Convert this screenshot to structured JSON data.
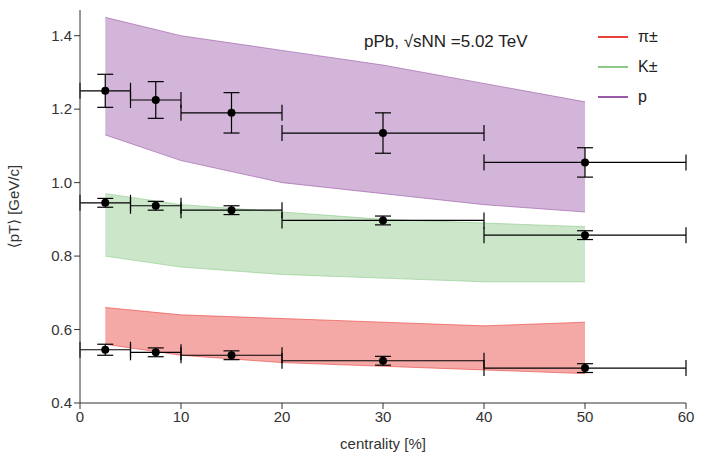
{
  "chart_data": {
    "type": "scatter",
    "title": "pPb, √sNN =5.02 TeV",
    "x_label": "centrality [%]",
    "y_label": "⟨pT⟩ [GeV/c]",
    "xlim": [
      0,
      60
    ],
    "xticks": [
      0,
      10,
      20,
      30,
      40,
      50,
      60
    ],
    "ylim": [
      0.4,
      1.47
    ],
    "yticks": [
      0.4,
      0.6,
      0.8,
      {
        "value": 1.0,
        "label": "1.0"
      },
      1.2,
      1.4
    ],
    "grid": false,
    "legend": "top-right",
    "marker": "circle",
    "series": [
      {
        "name": "π±",
        "color": "#e8413c",
        "x": [
          2.5,
          7.5,
          15,
          30,
          50
        ],
        "values": [
          0.545,
          0.538,
          0.53,
          0.515,
          0.495
        ],
        "xerr": [
          2.5,
          2.5,
          5,
          10,
          10
        ],
        "yerr": [
          0.015,
          0.012,
          0.012,
          0.012,
          0.012
        ],
        "band": {
          "x": [
            2.5,
            10,
            20,
            30,
            40,
            50
          ],
          "lower": [
            0.56,
            0.53,
            0.51,
            0.5,
            0.49,
            0.48
          ],
          "upper": [
            0.66,
            0.64,
            0.63,
            0.62,
            0.61,
            0.62
          ]
        }
      },
      {
        "name": "K±",
        "color": "#8cc887",
        "x": [
          2.5,
          7.5,
          15,
          30,
          50
        ],
        "values": [
          0.945,
          0.937,
          0.925,
          0.897,
          0.857
        ],
        "xerr": [
          2.5,
          2.5,
          5,
          10,
          10
        ],
        "yerr": [
          0.012,
          0.012,
          0.012,
          0.012,
          0.012
        ],
        "band": {
          "x": [
            2.5,
            10,
            20,
            30,
            40,
            50
          ],
          "lower": [
            0.8,
            0.77,
            0.75,
            0.74,
            0.73,
            0.73
          ],
          "upper": [
            0.97,
            0.94,
            0.92,
            0.9,
            0.89,
            0.88
          ]
        }
      },
      {
        "name": "p",
        "color": "#9b5aa8",
        "x": [
          2.5,
          7.5,
          15,
          30,
          50
        ],
        "values": [
          1.25,
          1.225,
          1.19,
          1.135,
          1.055
        ],
        "xerr": [
          2.5,
          2.5,
          5,
          10,
          10
        ],
        "yerr": [
          0.045,
          0.05,
          0.055,
          0.055,
          0.04
        ],
        "band": {
          "x": [
            2.5,
            10,
            20,
            30,
            40,
            50
          ],
          "lower": [
            1.13,
            1.06,
            1.0,
            0.97,
            0.94,
            0.92
          ],
          "upper": [
            1.45,
            1.4,
            1.36,
            1.32,
            1.27,
            1.22
          ]
        }
      }
    ]
  }
}
